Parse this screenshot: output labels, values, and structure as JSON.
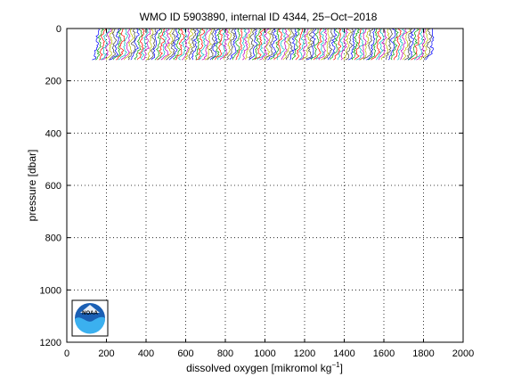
{
  "chart_data": {
    "type": "line",
    "title": "WMO ID 5903890, internal ID 4344, 25−Oct−2018",
    "xlabel": "dissolved oxygen [mikromol kg",
    "xlabel_sup": "−1",
    "xlabel_end": "]",
    "ylabel": "pressure [dbar]",
    "xlim": [
      0,
      2000
    ],
    "ylim": [
      1200,
      0
    ],
    "y_reversed": true,
    "grid": true,
    "grid_style": "dotted",
    "xticks": [
      0,
      200,
      400,
      600,
      800,
      1000,
      1200,
      1400,
      1600,
      1800,
      2000
    ],
    "yticks": [
      0,
      200,
      400,
      600,
      800,
      1000,
      1200
    ],
    "profiles": {
      "description": "waterfall of offset oxygen profiles",
      "count": 120,
      "x_start": 140,
      "x_step": 14.2,
      "p_min": 0,
      "p_max": 120,
      "base_oxygen_surface": 20,
      "base_oxygen_deep": 5
    },
    "series_colors": [
      "#0000ff",
      "#00a000",
      "#ff0000",
      "#00bfbf",
      "#bf00bf",
      "#bfbf00",
      "#404040"
    ]
  },
  "logo": {
    "label": "NOAA"
  }
}
